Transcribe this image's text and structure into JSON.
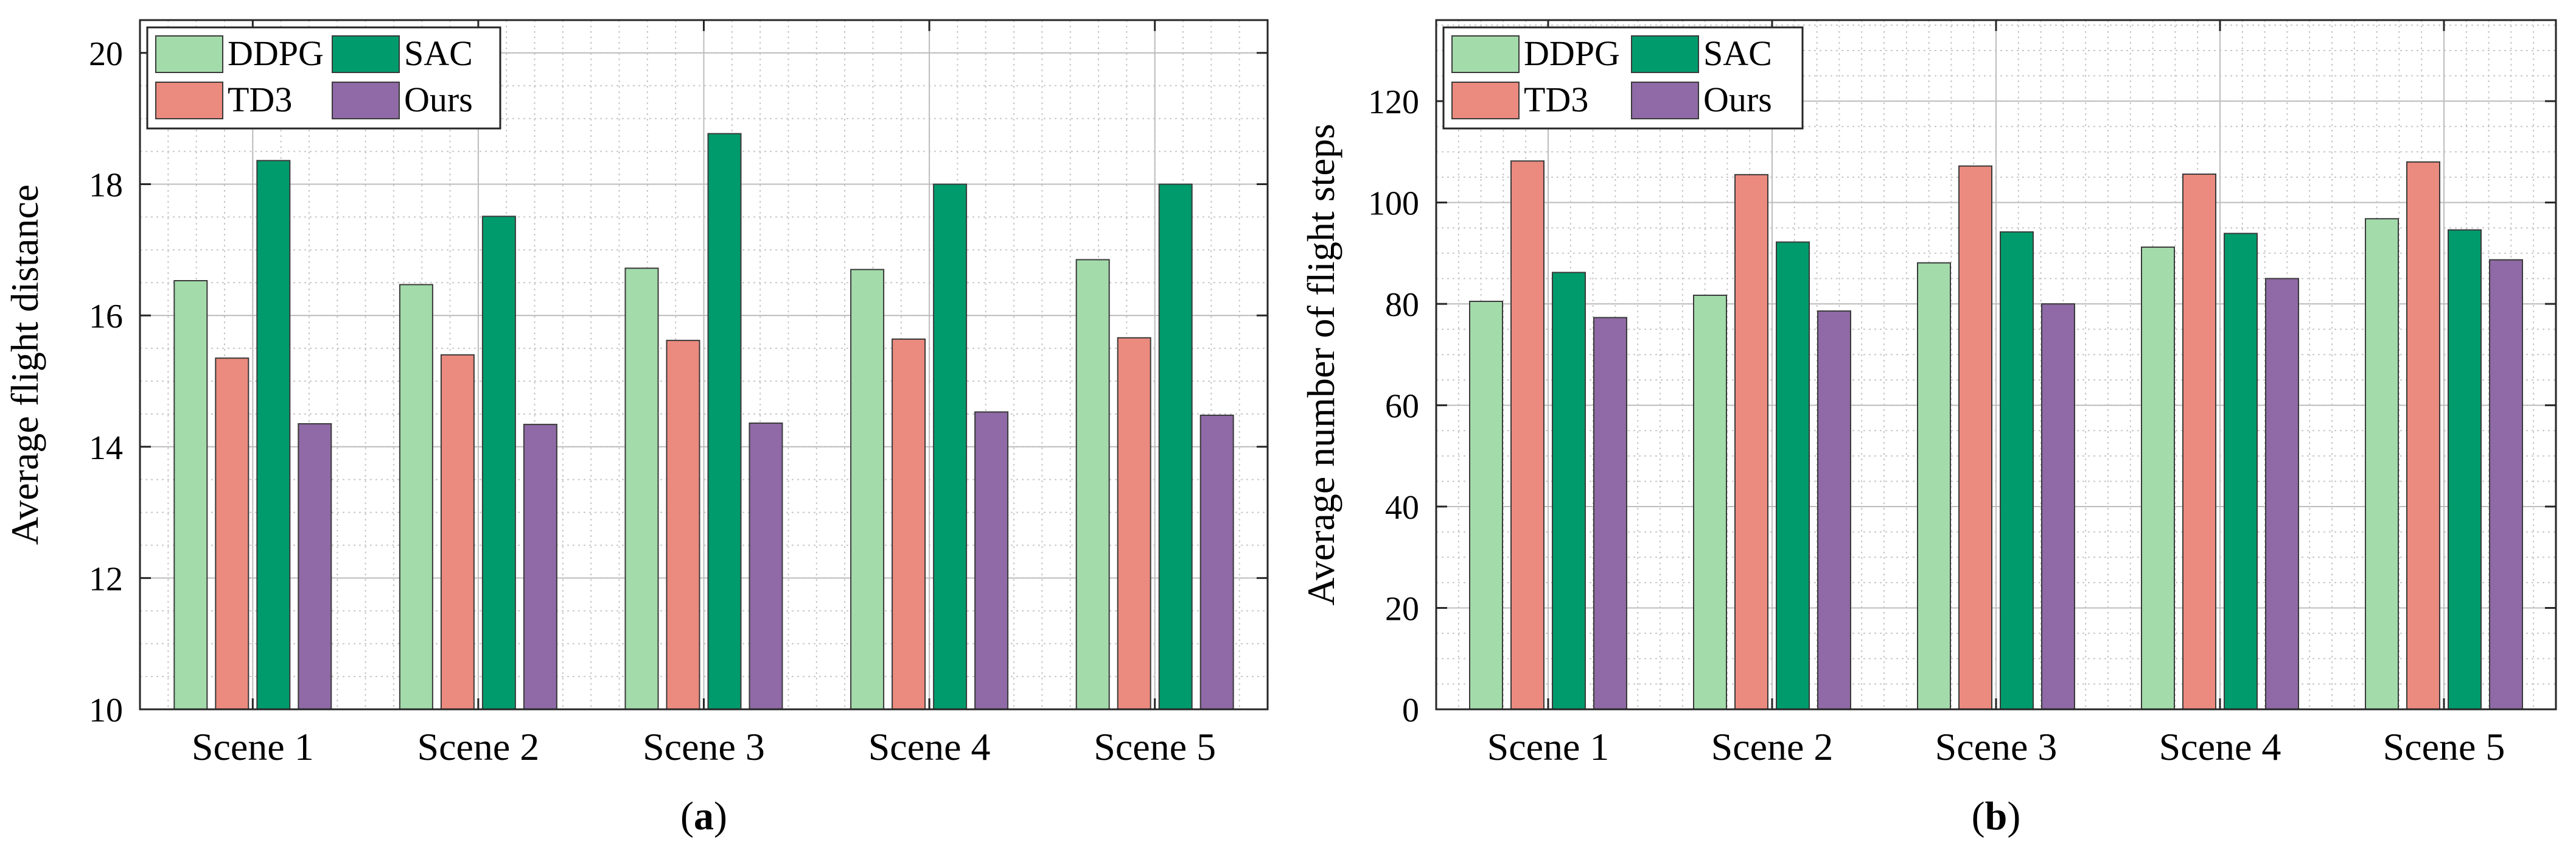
{
  "chart_data": [
    {
      "type": "bar",
      "panel_label": {
        "open": "(",
        "letter": "a",
        "close": ")"
      },
      "ylabel": "Average flight distance",
      "xlabel": "",
      "ylim": [
        10,
        20.5
      ],
      "yticks": [
        10,
        12,
        14,
        16,
        18,
        20
      ],
      "grid": true,
      "legend_position": "top-left",
      "categories": [
        "Scene 1",
        "Scene 2",
        "Scene 3",
        "Scene 4",
        "Scene 5"
      ],
      "series": [
        {
          "name": "DDPG",
          "color": "#a3dbab",
          "values": [
            16.53,
            16.47,
            16.72,
            16.7,
            16.85
          ]
        },
        {
          "name": "TD3",
          "color": "#eb8a7e",
          "values": [
            15.35,
            15.4,
            15.62,
            15.64,
            15.66
          ]
        },
        {
          "name": "SAC",
          "color": "#009b6c",
          "values": [
            18.36,
            17.51,
            18.77,
            18.0,
            18.0
          ]
        },
        {
          "name": "Ours",
          "color": "#8f6aa6",
          "values": [
            14.35,
            14.34,
            14.36,
            14.53,
            14.48
          ]
        }
      ]
    },
    {
      "type": "bar",
      "panel_label": {
        "open": "(",
        "letter": "b",
        "close": ")"
      },
      "ylabel": "Average number of flight steps",
      "xlabel": "",
      "ylim": [
        0,
        136
      ],
      "yticks": [
        0,
        20,
        40,
        60,
        80,
        100,
        120
      ],
      "grid": true,
      "legend_position": "top-left",
      "categories": [
        "Scene 1",
        "Scene 2",
        "Scene 3",
        "Scene 4",
        "Scene 5"
      ],
      "series": [
        {
          "name": "DDPG",
          "color": "#a3dbab",
          "values": [
            80.5,
            81.7,
            88.1,
            91.2,
            96.8
          ]
        },
        {
          "name": "TD3",
          "color": "#eb8a7e",
          "values": [
            108.2,
            105.5,
            107.2,
            105.6,
            108.0
          ]
        },
        {
          "name": "SAC",
          "color": "#009b6c",
          "values": [
            86.2,
            92.2,
            94.2,
            93.9,
            94.6
          ]
        },
        {
          "name": "Ours",
          "color": "#8f6aa6",
          "values": [
            77.3,
            78.6,
            80.0,
            85.0,
            88.7
          ]
        }
      ]
    }
  ]
}
